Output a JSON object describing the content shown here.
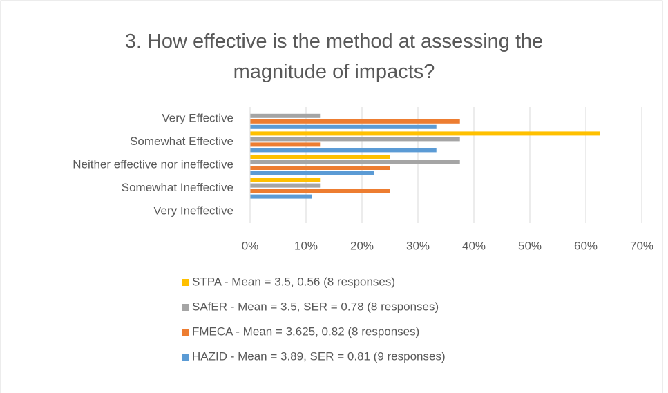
{
  "chart_data": {
    "type": "bar",
    "orientation": "horizontal",
    "title": "3. How effective is the method at assessing the magnitude of impacts?",
    "categories": [
      "Very Effective",
      "Somewhat Effective",
      "Neither effective nor ineffective",
      "Somewhat Ineffective",
      "Very Ineffective"
    ],
    "series": [
      {
        "name": "STPA - Mean = 3.5, 0.56 (8 responses)",
        "color": "#ffc000",
        "values": [
          0,
          62.5,
          25,
          12.5,
          0
        ]
      },
      {
        "name": "SAfER - Mean = 3.5, SER = 0.78 (8 responses)",
        "color": "#a5a5a5",
        "values": [
          12.5,
          37.5,
          37.5,
          12.5,
          0
        ]
      },
      {
        "name": "FMECA - Mean = 3.625, 0.82 (8 responses)",
        "color": "#ed7d31",
        "values": [
          37.5,
          12.5,
          25,
          25,
          0
        ]
      },
      {
        "name": "HAZID - Mean = 3.89, SER = 0.81 (9 responses)",
        "color": "#5b9bd5",
        "values": [
          33.3,
          33.3,
          22.2,
          11.1,
          0
        ]
      }
    ],
    "xlim": [
      0,
      70
    ],
    "xticks": [
      {
        "value": 0,
        "label": "0%"
      },
      {
        "value": 10,
        "label": "10%"
      },
      {
        "value": 20,
        "label": "20%"
      },
      {
        "value": 30,
        "label": "30%"
      },
      {
        "value": 40,
        "label": "40%"
      },
      {
        "value": 50,
        "label": "50%"
      },
      {
        "value": 60,
        "label": "60%"
      },
      {
        "value": 70,
        "label": "70%"
      }
    ],
    "grid": true,
    "legend": "bottom"
  }
}
